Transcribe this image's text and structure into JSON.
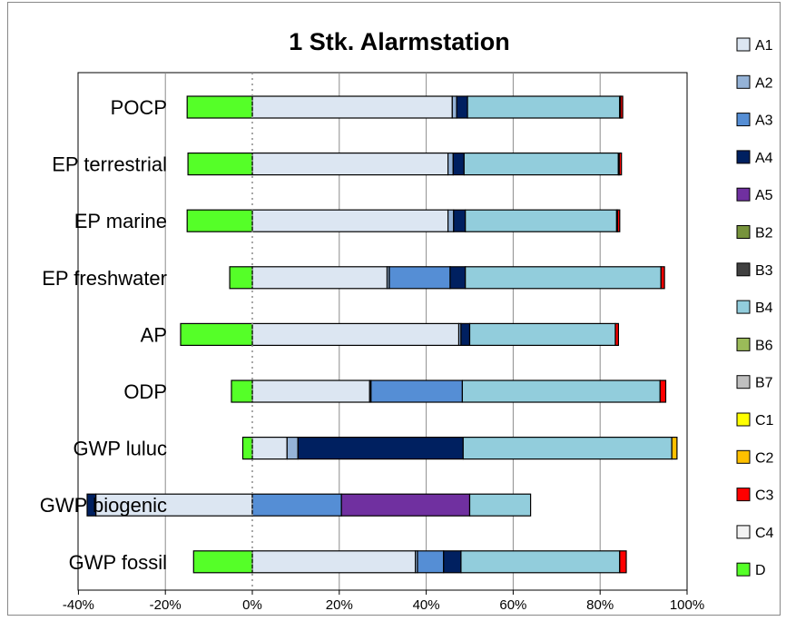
{
  "chart_data": {
    "type": "bar",
    "orientation": "horizontal",
    "stacked": true,
    "title": "1 Stk. Alarmstation",
    "xlabel": "",
    "ylabel": "",
    "xlim": [
      -0.4,
      1.0
    ],
    "x_ticks": [
      "-40%",
      "-20%",
      "0%",
      "20%",
      "40%",
      "60%",
      "80%",
      "100%"
    ],
    "x_tick_values": [
      -0.4,
      -0.2,
      0,
      0.2,
      0.4,
      0.6,
      0.8,
      1.0
    ],
    "grid": "vertical",
    "legend_position": "right",
    "categories": [
      "POCP",
      "EP terrestrial",
      "EP marine",
      "EP freshwater",
      "AP",
      "ODP",
      "GWP luluc",
      "GWP biogenic",
      "GWP fossil"
    ],
    "series": [
      {
        "name": "A1",
        "color": "#dce6f2",
        "values": [
          0.46,
          0.45,
          0.45,
          0.31,
          0.475,
          0.27,
          0.08,
          -0.36,
          0.375
        ]
      },
      {
        "name": "A2",
        "color": "#95b3d7",
        "values": [
          0.01,
          0.012,
          0.013,
          0.005,
          0.005,
          0.003,
          0.025,
          0.0,
          0.005
        ]
      },
      {
        "name": "A3",
        "color": "#558ed5",
        "values": [
          0.0,
          0.0,
          0.0,
          0.14,
          0.0,
          0.21,
          0.0,
          0.205,
          0.06
        ]
      },
      {
        "name": "A4",
        "color": "#002060",
        "values": [
          0.025,
          0.025,
          0.027,
          0.035,
          0.02,
          0.0,
          0.38,
          -0.02,
          0.04
        ]
      },
      {
        "name": "A5",
        "color": "#7030a0",
        "values": [
          0.0,
          0.0,
          0.0,
          0.0,
          0.0,
          0.0,
          0.0,
          0.295,
          0.0
        ]
      },
      {
        "name": "B2",
        "color": "#77933c",
        "values": [
          0,
          0,
          0,
          0,
          0,
          0,
          0,
          0,
          0
        ]
      },
      {
        "name": "B3",
        "color": "#404040",
        "values": [
          0,
          0,
          0,
          0,
          0,
          0,
          0,
          0,
          0
        ]
      },
      {
        "name": "B4",
        "color": "#92cddc",
        "values": [
          0.35,
          0.355,
          0.348,
          0.45,
          0.335,
          0.455,
          0.48,
          0.14,
          0.365
        ]
      },
      {
        "name": "B6",
        "color": "#9bbb59",
        "values": [
          0,
          0,
          0,
          0,
          0,
          0,
          0,
          0,
          0
        ]
      },
      {
        "name": "B7",
        "color": "#bfbfbf",
        "values": [
          0,
          0,
          0,
          0,
          0,
          0,
          0,
          0,
          0
        ]
      },
      {
        "name": "C1",
        "color": "#ffff00",
        "values": [
          0,
          0,
          0,
          0,
          0,
          0,
          0,
          0,
          0
        ]
      },
      {
        "name": "C2",
        "color": "#ffc000",
        "values": [
          0.002,
          0.002,
          0.002,
          0.0,
          0.0,
          0.0,
          0.012,
          0.0,
          0.0
        ]
      },
      {
        "name": "C3",
        "color": "#ff0000",
        "values": [
          0.005,
          0.005,
          0.005,
          0.008,
          0.007,
          0.013,
          0.0,
          0.0,
          0.015
        ]
      },
      {
        "name": "C4",
        "color": "#f2f2f2",
        "values": [
          0,
          0,
          0,
          0,
          0,
          0,
          0,
          0,
          0
        ]
      },
      {
        "name": "D",
        "color": "#55ff28",
        "values": [
          -0.15,
          -0.148,
          -0.15,
          -0.052,
          -0.165,
          -0.048,
          -0.022,
          0.0,
          -0.135
        ]
      }
    ]
  }
}
